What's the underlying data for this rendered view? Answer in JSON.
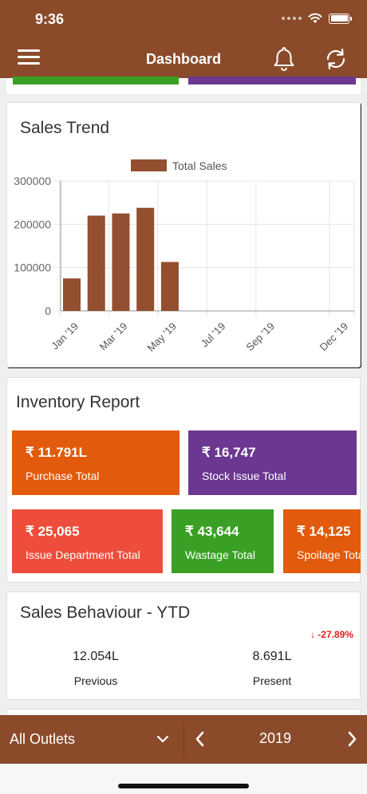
{
  "status_bar": {
    "time": "9:36"
  },
  "header": {
    "title": "Dashboard",
    "menu_icon": "hamburger-menu-icon",
    "notification_icon": "bell-icon",
    "refresh_icon": "refresh-icon",
    "bg_color": "#8b4b2a"
  },
  "sales_trend": {
    "title": "Sales Trend",
    "chart_data": {
      "type": "bar",
      "legend": [
        "Total Sales"
      ],
      "legend_position": "top-center",
      "x_ticks": [
        "Jan '19",
        "Mar '19",
        "May '19",
        "Jul '19",
        "Sep '19",
        "Dec '19"
      ],
      "x": [
        "2019-01",
        "2019-02",
        "2019-03",
        "2019-04",
        "2019-05"
      ],
      "series": [
        {
          "name": "Total Sales",
          "values": [
            75000,
            220000,
            225000,
            238000,
            113000
          ],
          "color": "#934f2f"
        }
      ],
      "y_ticks": [
        "0",
        "100000",
        "200000",
        "300000"
      ],
      "ylim": [
        0,
        300000
      ],
      "grid": true
    }
  },
  "inventory": {
    "title": "Inventory Report",
    "tiles": [
      {
        "value": "₹ 11.791L",
        "label": "Purchase Total",
        "color": "#e25a0b"
      },
      {
        "value": "₹ 16,747",
        "label": "Stock Issue Total",
        "color": "#6b3790"
      },
      {
        "value": "₹ 25,065",
        "label": "Issue Department Total",
        "color": "#ef4d3b"
      },
      {
        "value": "₹ 43,644",
        "label": "Wastage Total",
        "color": "#3aa025"
      },
      {
        "value": "₹ 14,125",
        "label": "Spoilage Total",
        "color": "#e25a0b"
      }
    ]
  },
  "sales_behaviour": {
    "title": "Sales Behaviour  - YTD",
    "change": "-27.89%",
    "change_icon": "arrow-down-icon",
    "previous_value": "12.054L",
    "previous_label": "Previous",
    "present_value": "8.691L",
    "present_label": "Present"
  },
  "bottom_bar": {
    "outlet": "All Outlets",
    "year": "2019"
  }
}
